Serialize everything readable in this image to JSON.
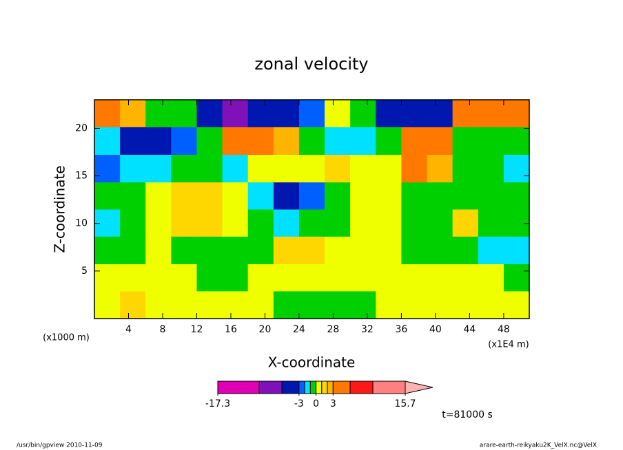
{
  "chart_data": {
    "type": "contour",
    "title": "zonal velocity",
    "x_label": "X-coordinate",
    "y_label": "Z-coordinate",
    "x_unit": "(x1E4 m)",
    "y_unit": "(x1000 m)",
    "time_label": "t=81000 s",
    "footer_left": "/usr/bin/gpview  2010-11-09",
    "footer_right": "arare-earth-reikyaku2K_VelX.nc@VelX",
    "xlim": [
      0,
      51
    ],
    "ylim": [
      0,
      23
    ],
    "xticks": [
      4,
      8,
      12,
      16,
      20,
      24,
      28,
      32,
      36,
      40,
      44,
      48
    ],
    "yticks": [
      5,
      10,
      15,
      20
    ],
    "x": [
      1.5,
      4.5,
      7.5,
      10.5,
      13.5,
      16.5,
      19.5,
      22.5,
      25.5,
      28.5,
      31.5,
      34.5,
      37.5,
      40.5,
      43.5,
      46.5,
      49.5
    ],
    "z": [
      1.5,
      4.3,
      7.2,
      10.1,
      12.9,
      15.8,
      18.7,
      21.6
    ],
    "values": [
      [
        0.5,
        1.5,
        0.5,
        0.5,
        0.5,
        0.5,
        0.5,
        -0.5,
        -0.5,
        -0.5,
        -0.5,
        0.5,
        0.5,
        0.5,
        0.5,
        0.5,
        0.5
      ],
      [
        0.5,
        0.5,
        0.5,
        0.5,
        -0.5,
        -0.5,
        0.5,
        0.5,
        0.5,
        0.5,
        0.5,
        0.5,
        0.5,
        0.5,
        0.5,
        0.5,
        -0.5
      ],
      [
        -0.5,
        -0.5,
        0.5,
        -0.5,
        -0.5,
        -0.5,
        -0.5,
        1.5,
        1.5,
        0.5,
        0.5,
        0.5,
        -0.5,
        -0.5,
        -0.5,
        -1.5,
        -1.5
      ],
      [
        -1.5,
        -0.5,
        0.5,
        1.5,
        1.5,
        0.5,
        -0.5,
        -1.5,
        -0.5,
        -0.5,
        0.5,
        0.5,
        -0.5,
        -0.5,
        1.5,
        -0.5,
        -0.5
      ],
      [
        -0.5,
        -0.5,
        0.5,
        1.5,
        1.5,
        0.5,
        -1.5,
        -4,
        -2.5,
        -0.5,
        0.5,
        0.5,
        -0.5,
        -0.5,
        -0.5,
        -0.5,
        -0.5
      ],
      [
        -2.5,
        -1.5,
        -1.5,
        -0.5,
        -0.5,
        -1.5,
        0.5,
        0.5,
        0.5,
        1.5,
        0.5,
        0.5,
        4.5,
        2.5,
        -0.5,
        -0.5,
        -1.5
      ],
      [
        -1.5,
        -4,
        -4,
        -2.5,
        -0.5,
        4.5,
        4.5,
        2.5,
        -0.5,
        -1.5,
        -1.5,
        -0.5,
        4.5,
        4.5,
        -0.5,
        -0.5,
        -0.5
      ],
      [
        4.5,
        2.5,
        -0.5,
        -0.5,
        -4,
        -7,
        -4,
        -4,
        -2.5,
        0.5,
        -0.5,
        -4,
        -4,
        -4,
        4.5,
        4.5,
        4.5
      ]
    ],
    "colorbar": {
      "levels": [
        -17.3,
        -10,
        -6,
        -3,
        -2,
        -1,
        0,
        1,
        2,
        3,
        6,
        10,
        15.7
      ],
      "colors": [
        "#e000b4",
        "#8010b8",
        "#0018b0",
        "#0060ff",
        "#00e0ff",
        "#00d000",
        "#f0ff00",
        "#ffd700",
        "#ffb400",
        "#ff7800",
        "#ff1818",
        "#ff8080"
      ],
      "extend_color": "#ffb4b4",
      "ticks": [
        -17.3,
        -3,
        0,
        3,
        15.7
      ]
    }
  }
}
